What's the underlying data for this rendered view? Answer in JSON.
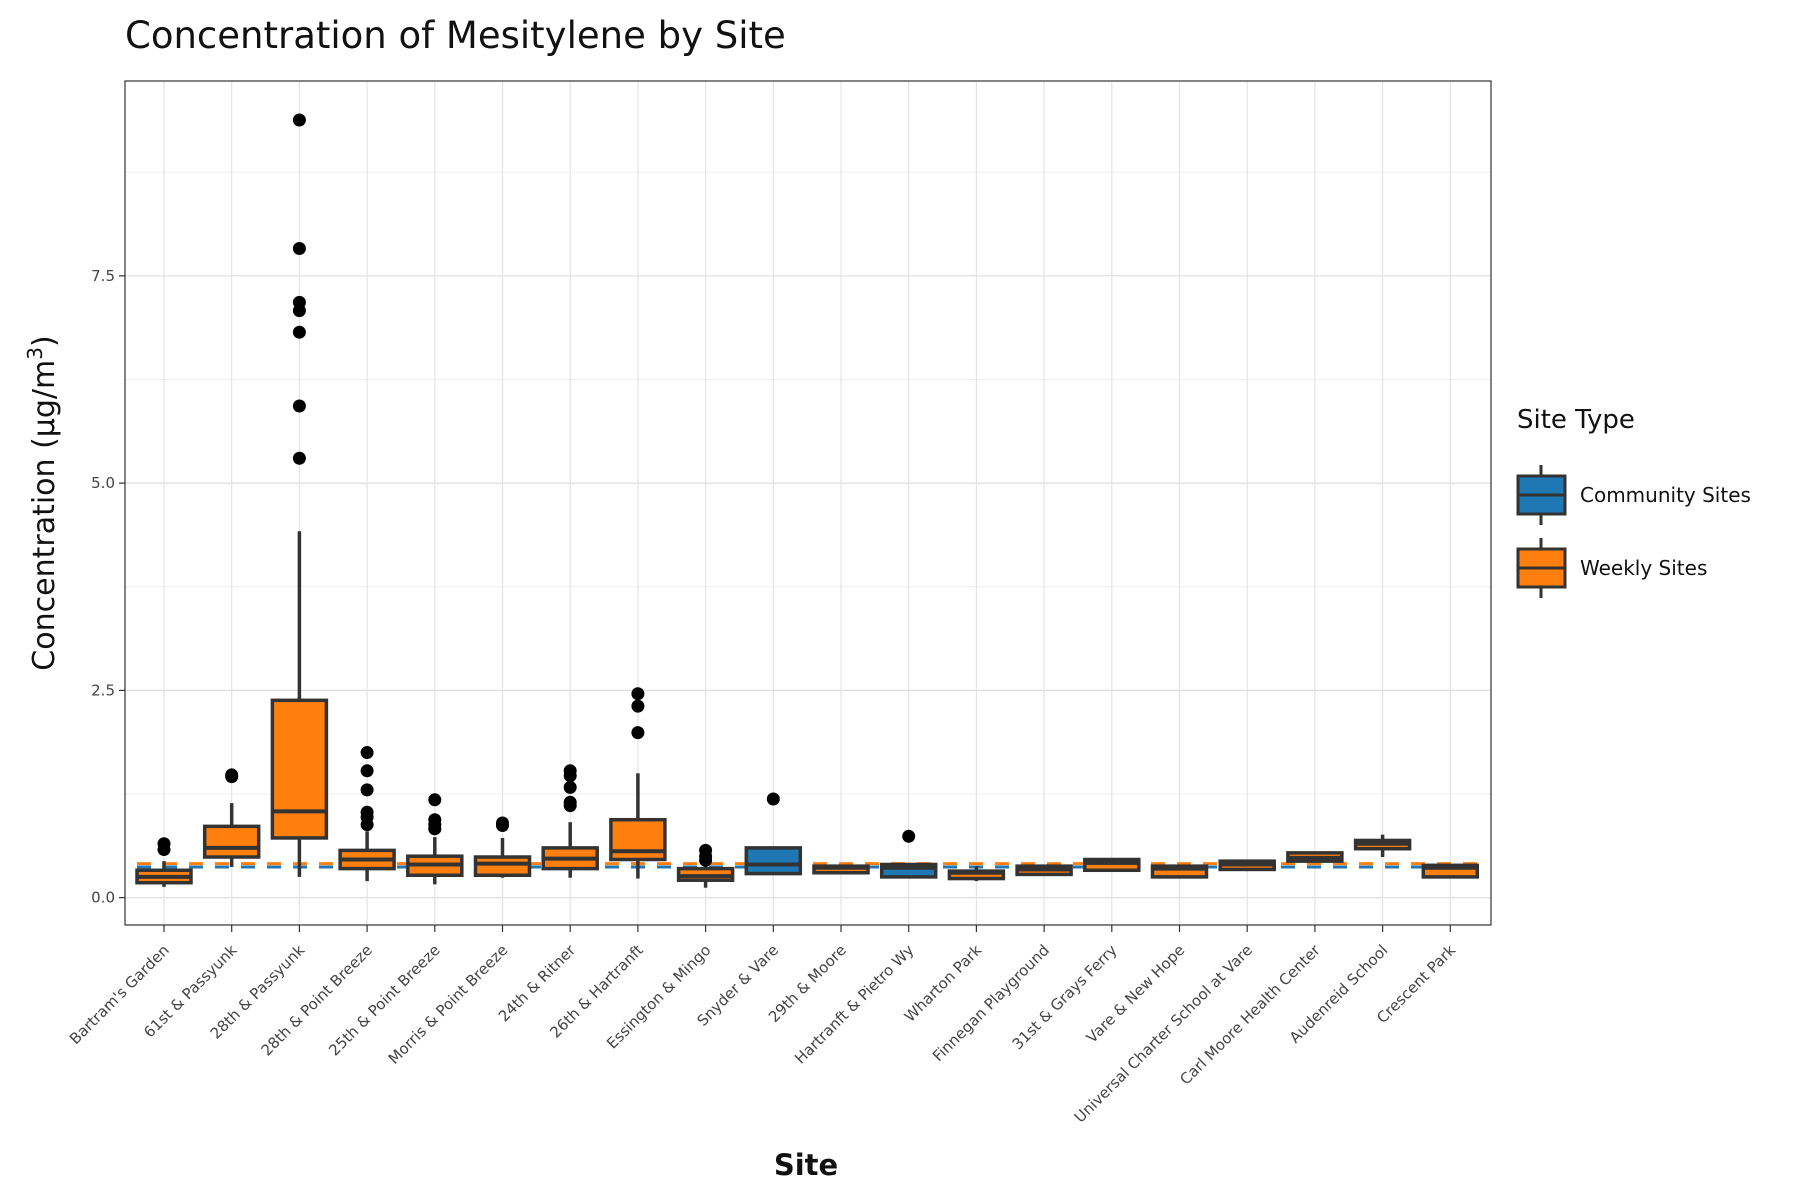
{
  "chart_data": {
    "type": "box",
    "title": "Concentration of Mesitylene by Site",
    "xlabel": "Site",
    "ylabel_main": "Concentration (µg/m",
    "ylabel_sup": "3",
    "ylabel_close": ")",
    "ylim": [
      -0.33,
      9.85
    ],
    "yticks": [
      0.0,
      2.5,
      5.0,
      7.5
    ],
    "ytick_labels": [
      "0.0",
      "2.5",
      "5.0",
      "7.5"
    ],
    "grid": true,
    "legend": {
      "title": "Site Type",
      "position": "right",
      "entries": [
        {
          "label": "Community Sites",
          "color": "#1f77b4"
        },
        {
          "label": "Weekly Sites",
          "color": "#ff7f0e"
        }
      ]
    },
    "reference_lines": [
      {
        "series": "Community Sites",
        "y": 0.37,
        "color": "#1f77b4",
        "style": "dashed"
      },
      {
        "series": "Weekly Sites",
        "y": 0.41,
        "color": "#ff7f0e",
        "style": "dashed"
      }
    ],
    "categories": [
      "Bartram's Garden",
      "61st & Passyunk",
      "28th & Passyunk",
      "28th & Point Breeze",
      "25th & Point Breeze",
      "Morris & Point Breeze",
      "24th & Ritner",
      "26th & Hartranft",
      "Essington & Mingo",
      "Snyder & Vare",
      "29th & Moore",
      "Hartranft & Pietro Wy",
      "Wharton Park",
      "Finnegan Playground",
      "31st & Grays Ferry",
      "Vare & New Hope",
      "Universal Charter School at Vare",
      "Carl Moore Health Center",
      "Audenreid School",
      "Crescent Park"
    ],
    "boxes": [
      {
        "site": "Bartram's Garden",
        "type": "Weekly Sites",
        "whisker_low": 0.13,
        "q1": 0.18,
        "median": 0.25,
        "q3": 0.33,
        "whisker_high": 0.44,
        "outliers": [
          0.58,
          0.65
        ]
      },
      {
        "site": "61st & Passyunk",
        "type": "Weekly Sites",
        "whisker_low": 0.37,
        "q1": 0.49,
        "median": 0.6,
        "q3": 0.86,
        "whisker_high": 1.14,
        "outliers": [
          1.46,
          1.48
        ]
      },
      {
        "site": "28th & Passyunk",
        "type": "Weekly Sites",
        "whisker_low": 0.25,
        "q1": 0.72,
        "median": 1.04,
        "q3": 2.38,
        "whisker_high": 4.42,
        "outliers": [
          5.3,
          5.93,
          6.82,
          7.08,
          7.18,
          7.83,
          9.38
        ]
      },
      {
        "site": "28th & Point Breeze",
        "type": "Weekly Sites",
        "whisker_low": 0.2,
        "q1": 0.35,
        "median": 0.46,
        "q3": 0.57,
        "whisker_high": 0.8,
        "outliers": [
          0.88,
          0.97,
          1.03,
          1.3,
          1.53,
          1.75
        ]
      },
      {
        "site": "25th & Point Breeze",
        "type": "Weekly Sites",
        "whisker_low": 0.16,
        "q1": 0.27,
        "median": 0.4,
        "q3": 0.5,
        "whisker_high": 0.73,
        "outliers": [
          0.83,
          0.88,
          0.94,
          1.18
        ]
      },
      {
        "site": "Morris & Point Breeze",
        "type": "Weekly Sites",
        "whisker_low": 0.24,
        "q1": 0.27,
        "median": 0.41,
        "q3": 0.49,
        "whisker_high": 0.72,
        "outliers": [
          0.87,
          0.9
        ]
      },
      {
        "site": "24th & Ritner",
        "type": "Weekly Sites",
        "whisker_low": 0.24,
        "q1": 0.35,
        "median": 0.47,
        "q3": 0.6,
        "whisker_high": 0.91,
        "outliers": [
          1.11,
          1.15,
          1.33,
          1.47,
          1.53
        ]
      },
      {
        "site": "26th & Hartranft",
        "type": "Weekly Sites",
        "whisker_low": 0.23,
        "q1": 0.46,
        "median": 0.56,
        "q3": 0.94,
        "whisker_high": 1.5,
        "outliers": [
          1.99,
          2.31,
          2.46
        ]
      },
      {
        "site": "Essington & Mingo",
        "type": "Weekly Sites",
        "whisker_low": 0.12,
        "q1": 0.21,
        "median": 0.26,
        "q3": 0.35,
        "whisker_high": 0.4,
        "outliers": [
          0.45,
          0.5,
          0.57
        ]
      },
      {
        "site": "Snyder & Vare",
        "type": "Community Sites",
        "whisker_low": 0.29,
        "q1": 0.29,
        "median": 0.4,
        "q3": 0.6,
        "whisker_high": 0.6,
        "outliers": [
          1.19
        ]
      },
      {
        "site": "29th & Moore",
        "type": "Weekly Sites",
        "whisker_low": 0.3,
        "q1": 0.3,
        "median": 0.36,
        "q3": 0.38,
        "whisker_high": 0.38,
        "outliers": []
      },
      {
        "site": "Hartranft & Pietro Wy",
        "type": "Community Sites",
        "whisker_low": 0.25,
        "q1": 0.25,
        "median": 0.36,
        "q3": 0.4,
        "whisker_high": 0.4,
        "outliers": [
          0.74
        ]
      },
      {
        "site": "Wharton Park",
        "type": "Weekly Sites",
        "whisker_low": 0.2,
        "q1": 0.23,
        "median": 0.3,
        "q3": 0.32,
        "whisker_high": 0.38,
        "outliers": []
      },
      {
        "site": "Finnegan Playground",
        "type": "Weekly Sites",
        "whisker_low": 0.28,
        "q1": 0.28,
        "median": 0.34,
        "q3": 0.38,
        "whisker_high": 0.38,
        "outliers": []
      },
      {
        "site": "31st & Grays Ferry",
        "type": "Weekly Sites",
        "whisker_low": 0.33,
        "q1": 0.33,
        "median": 0.42,
        "q3": 0.46,
        "whisker_high": 0.46,
        "outliers": []
      },
      {
        "site": "Vare & New Hope",
        "type": "Weekly Sites",
        "whisker_low": 0.25,
        "q1": 0.25,
        "median": 0.35,
        "q3": 0.38,
        "whisker_high": 0.38,
        "outliers": []
      },
      {
        "site": "Universal Charter School at Vare",
        "type": "Weekly Sites",
        "whisker_low": 0.34,
        "q1": 0.34,
        "median": 0.4,
        "q3": 0.44,
        "whisker_high": 0.44,
        "outliers": []
      },
      {
        "site": "Carl Moore Health Center",
        "type": "Weekly Sites",
        "whisker_low": 0.44,
        "q1": 0.44,
        "median": 0.48,
        "q3": 0.54,
        "whisker_high": 0.54,
        "outliers": []
      },
      {
        "site": "Audenreid School",
        "type": "Weekly Sites",
        "whisker_low": 0.49,
        "q1": 0.59,
        "median": 0.65,
        "q3": 0.69,
        "whisker_high": 0.76,
        "outliers": []
      },
      {
        "site": "Crescent Park",
        "type": "Weekly Sites",
        "whisker_low": 0.25,
        "q1": 0.25,
        "median": 0.36,
        "q3": 0.39,
        "whisker_high": 0.39,
        "outliers": []
      }
    ]
  }
}
